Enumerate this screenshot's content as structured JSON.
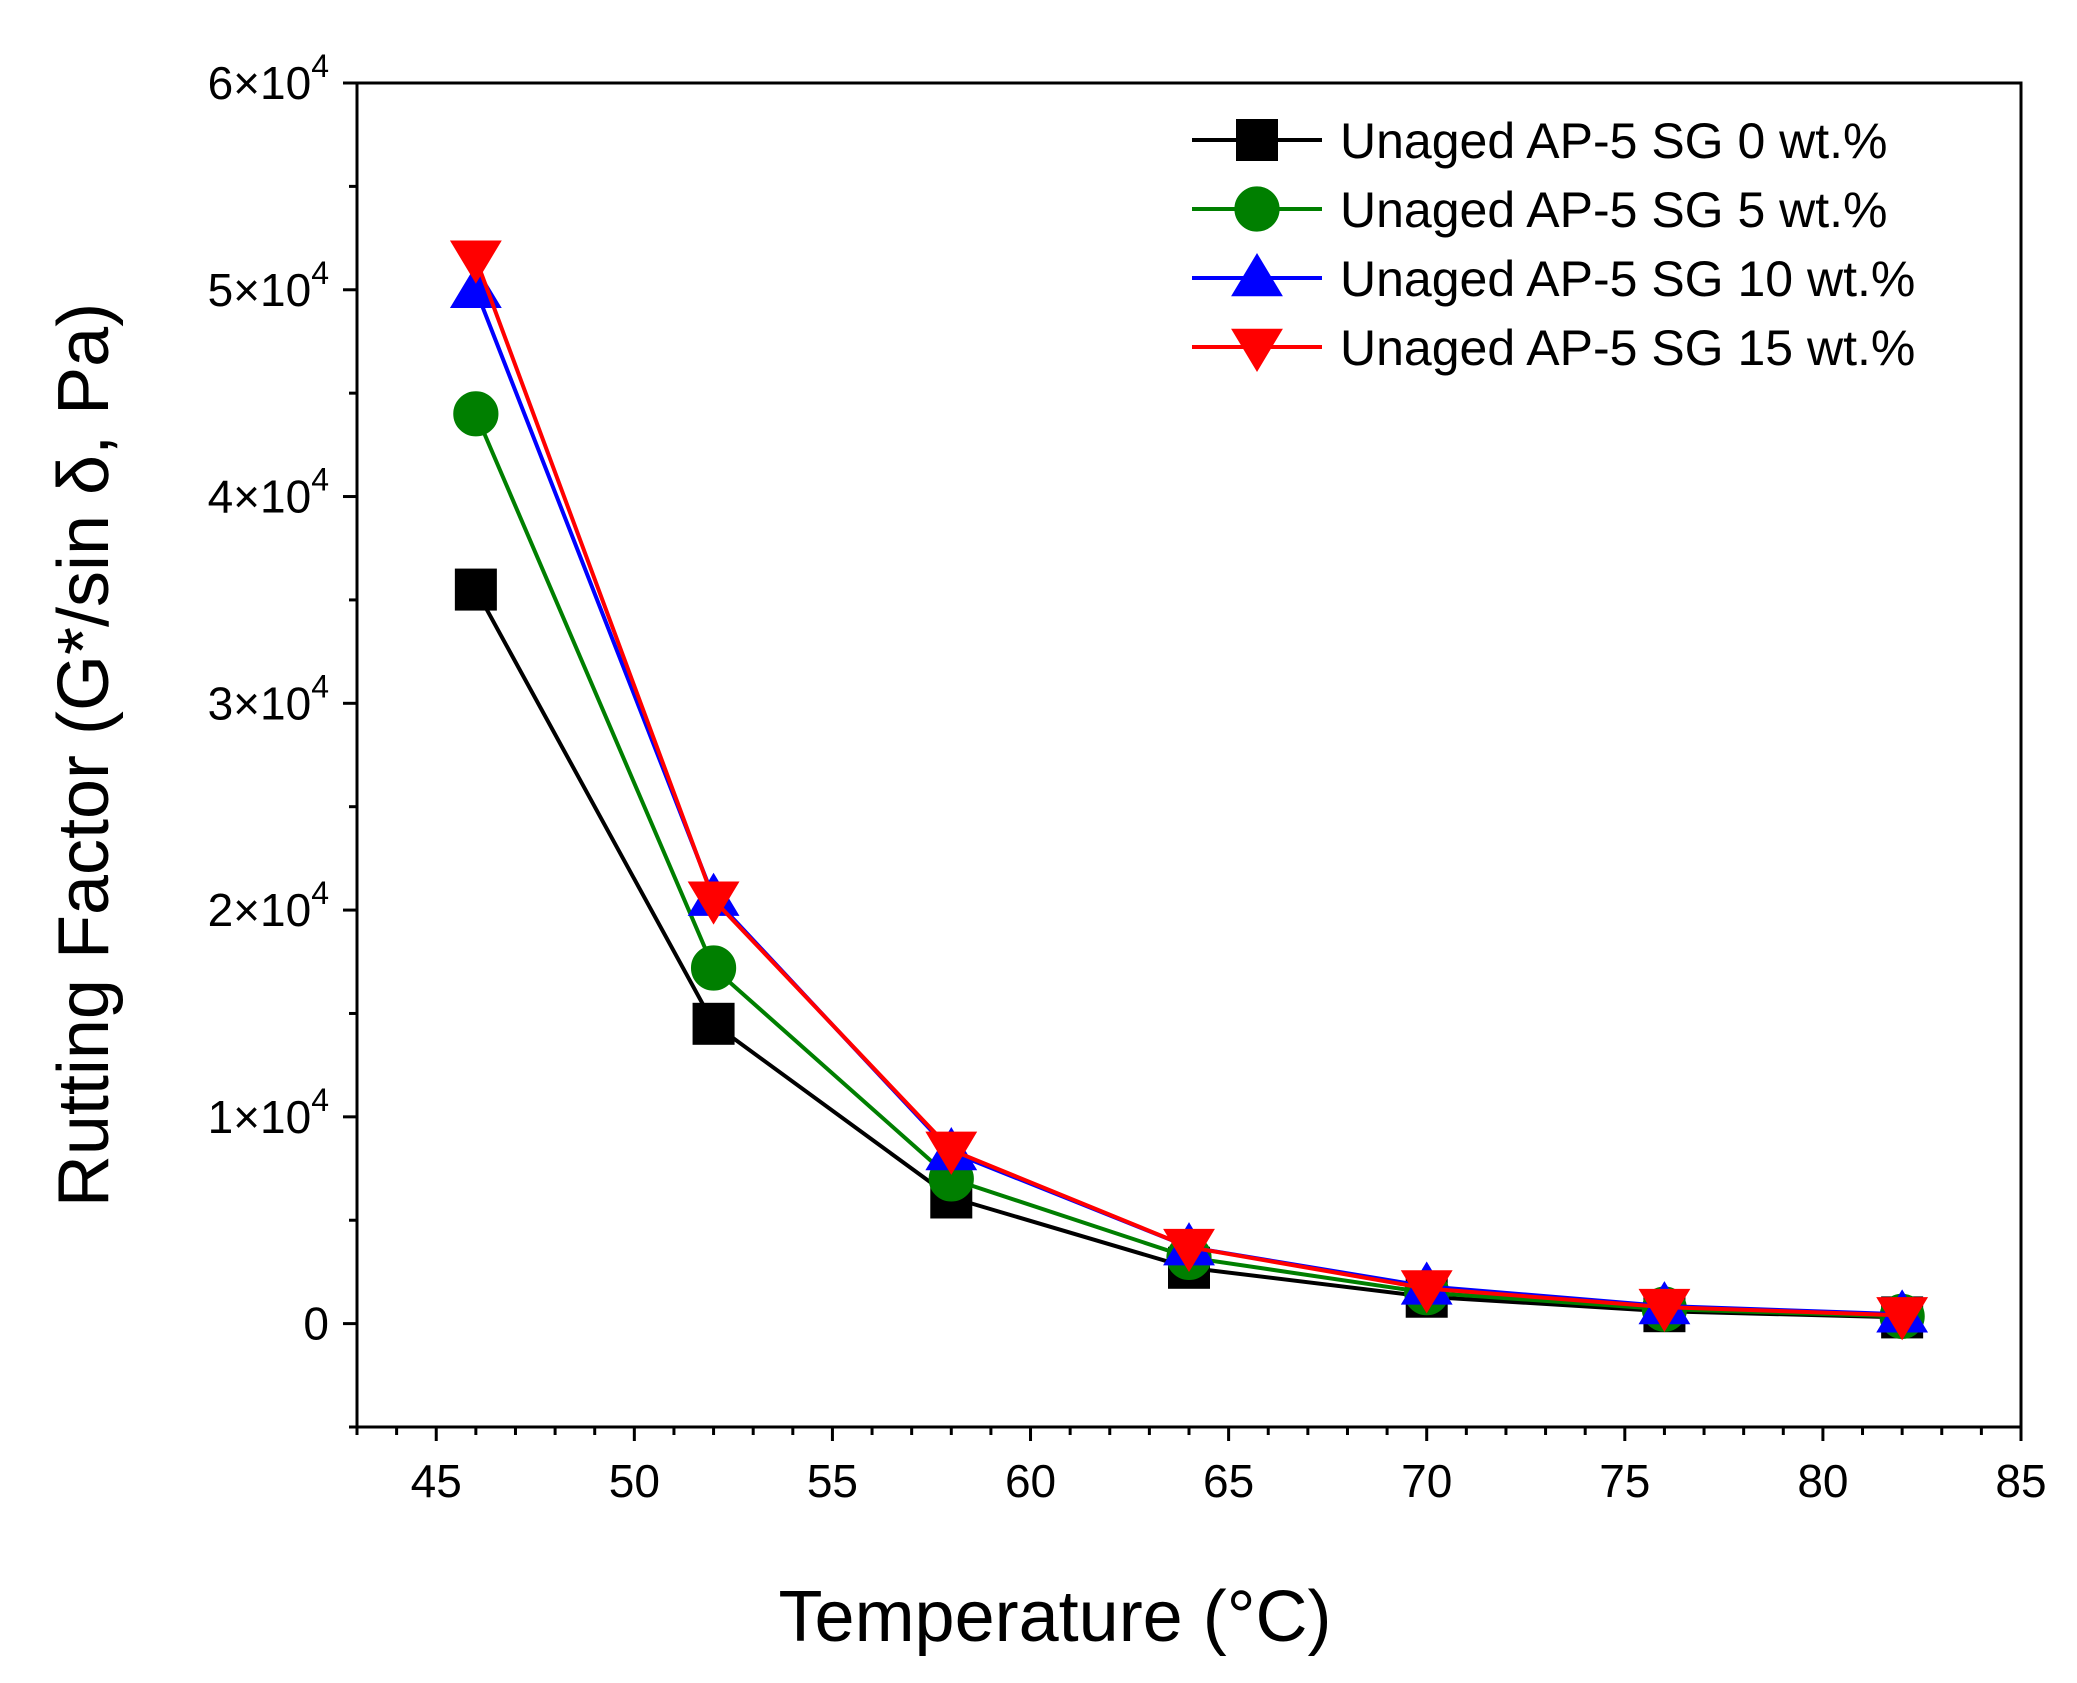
{
  "chart_data": {
    "type": "line",
    "title": "",
    "xlabel": "Temperature (°C)",
    "ylabel": "Rutting Factor (G*/sin δ, Pa)",
    "xlim": [
      43,
      85
    ],
    "ylim": [
      -5000,
      60000
    ],
    "x_ticks": [
      45,
      50,
      55,
      60,
      65,
      70,
      75,
      80,
      85
    ],
    "x_tick_labels": [
      "45",
      "50",
      "55",
      "60",
      "65",
      "70",
      "75",
      "80",
      "85"
    ],
    "y_ticks": [
      0,
      10000,
      20000,
      30000,
      40000,
      50000,
      60000
    ],
    "y_tick_labels": [
      {
        "mantissa": "0",
        "exp": ""
      },
      {
        "mantissa": "1×10",
        "exp": "4"
      },
      {
        "mantissa": "2×10",
        "exp": "4"
      },
      {
        "mantissa": "3×10",
        "exp": "4"
      },
      {
        "mantissa": "4×10",
        "exp": "4"
      },
      {
        "mantissa": "5×10",
        "exp": "4"
      },
      {
        "mantissa": "6×10",
        "exp": "4"
      }
    ],
    "grid": false,
    "legend_position": "top-right",
    "x": [
      46,
      52,
      58,
      64,
      70,
      76,
      82
    ],
    "series": [
      {
        "name": "Unaged AP-5 SG 0 wt.%",
        "color": "#000000",
        "marker": "square",
        "values": [
          35500,
          14500,
          6100,
          2700,
          1300,
          600,
          300
        ]
      },
      {
        "name": "Unaged AP-5 SG 5 wt.%",
        "color": "#007f00",
        "marker": "circle",
        "values": [
          44000,
          17200,
          7000,
          3200,
          1500,
          700,
          350
        ]
      },
      {
        "name": "Unaged AP-5 SG 10 wt.%",
        "color": "#0000ff",
        "marker": "triangle-up",
        "values": [
          50000,
          20600,
          8300,
          3700,
          1800,
          850,
          450
        ]
      },
      {
        "name": "Unaged AP-5 SG 15 wt.%",
        "color": "#ff0000",
        "marker": "triangle-down",
        "values": [
          51500,
          20500,
          8400,
          3700,
          1700,
          800,
          400
        ]
      }
    ]
  }
}
